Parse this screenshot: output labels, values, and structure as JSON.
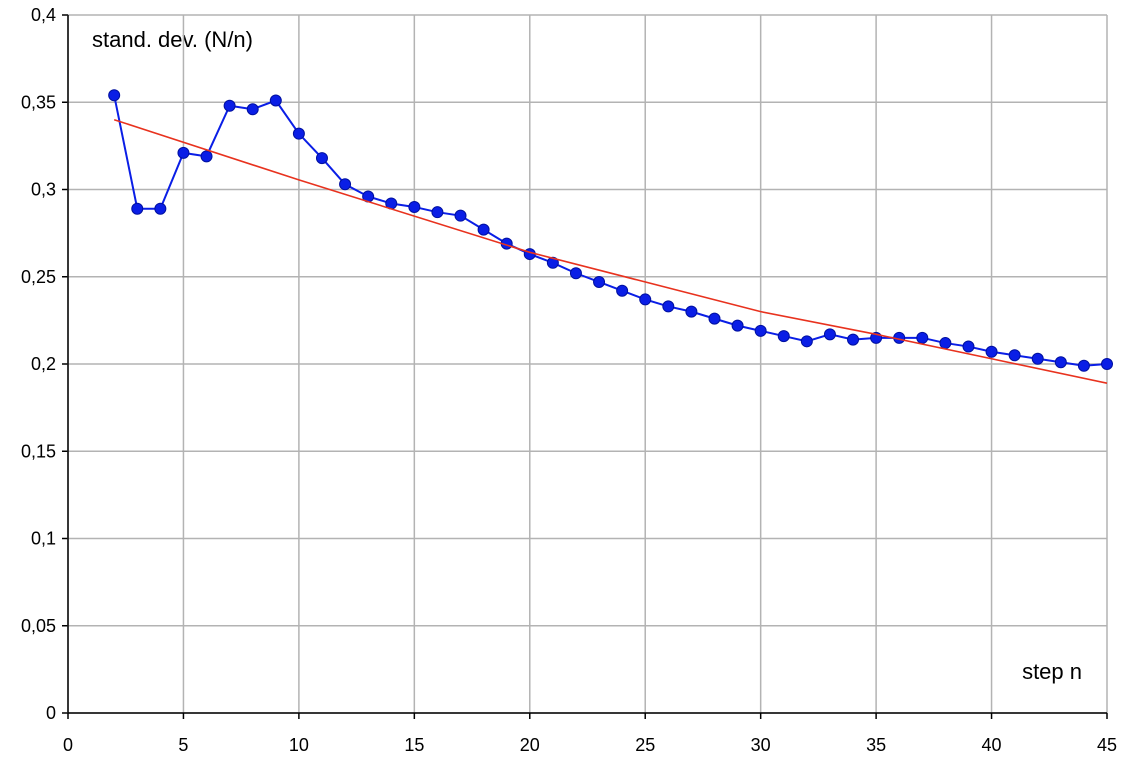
{
  "chart_data": {
    "type": "line",
    "y_label": "stand. dev. (N/n)",
    "x_label": "step n",
    "xlim": [
      0,
      45
    ],
    "xticks": [
      0,
      5,
      10,
      15,
      20,
      25,
      30,
      35,
      40,
      45
    ],
    "ylim": [
      0,
      0.4
    ],
    "yticks": [
      0,
      {
        "value": 0.05,
        "label": "0,05"
      },
      {
        "value": 0.1,
        "label": "0,1"
      },
      {
        "value": 0.15,
        "label": "0,15"
      },
      {
        "value": 0.2,
        "label": "0,2"
      },
      {
        "value": 0.25,
        "label": "0,25"
      },
      {
        "value": 0.3,
        "label": "0,3"
      },
      {
        "value": 0.35,
        "label": "0,35"
      },
      {
        "value": 0.4,
        "label": "0,4"
      }
    ],
    "grid": true,
    "series": [
      {
        "color": "#0a1ee6",
        "markers": true,
        "x": [
          2,
          3,
          4,
          5,
          6,
          7,
          8,
          9,
          10,
          11,
          12,
          13,
          14,
          15,
          16,
          17,
          18,
          19,
          20,
          21,
          22,
          23,
          24,
          25,
          26,
          27,
          28,
          29,
          30,
          31,
          32,
          33,
          34,
          35,
          36,
          37,
          38,
          39,
          40,
          41,
          42,
          43,
          44,
          45
        ],
        "values": [
          0.354,
          0.289,
          0.289,
          0.321,
          0.319,
          0.348,
          0.346,
          0.351,
          0.332,
          0.318,
          0.303,
          0.296,
          0.292,
          0.29,
          0.287,
          0.285,
          0.277,
          0.269,
          0.263,
          0.258,
          0.252,
          0.247,
          0.242,
          0.237,
          0.233,
          0.23,
          0.226,
          0.222,
          0.219,
          0.216,
          0.213,
          0.217,
          0.214,
          0.215,
          0.215,
          0.215,
          0.212,
          0.21,
          0.207,
          0.205,
          0.203,
          0.201,
          0.199,
          0.2
        ]
      },
      {
        "color": "#e8321e",
        "markers": false,
        "x": [
          2,
          10,
          20,
          30,
          35,
          40,
          45
        ],
        "values": [
          0.34,
          0.3055,
          0.264,
          0.23,
          0.217,
          0.203,
          0.189
        ]
      }
    ]
  }
}
